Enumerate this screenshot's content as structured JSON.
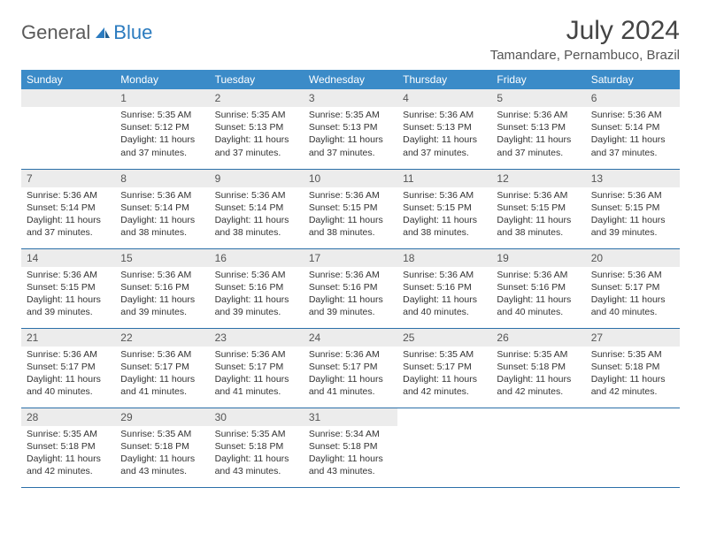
{
  "brand": {
    "part1": "General",
    "part2": "Blue"
  },
  "title": "July 2024",
  "location": "Tamandare, Pernambuco, Brazil",
  "colors": {
    "header_bg": "#3b8bc8",
    "header_text": "#ffffff",
    "daynum_bg": "#ececec",
    "rule": "#2b6fa8",
    "brand_blue": "#2b7bbf",
    "brand_gray": "#5a5a5a"
  },
  "weekdays": [
    "Sunday",
    "Monday",
    "Tuesday",
    "Wednesday",
    "Thursday",
    "Friday",
    "Saturday"
  ],
  "start_offset": 1,
  "days": [
    {
      "n": 1,
      "sunrise": "5:35 AM",
      "sunset": "5:12 PM",
      "daylight": "11 hours and 37 minutes."
    },
    {
      "n": 2,
      "sunrise": "5:35 AM",
      "sunset": "5:13 PM",
      "daylight": "11 hours and 37 minutes."
    },
    {
      "n": 3,
      "sunrise": "5:35 AM",
      "sunset": "5:13 PM",
      "daylight": "11 hours and 37 minutes."
    },
    {
      "n": 4,
      "sunrise": "5:36 AM",
      "sunset": "5:13 PM",
      "daylight": "11 hours and 37 minutes."
    },
    {
      "n": 5,
      "sunrise": "5:36 AM",
      "sunset": "5:13 PM",
      "daylight": "11 hours and 37 minutes."
    },
    {
      "n": 6,
      "sunrise": "5:36 AM",
      "sunset": "5:14 PM",
      "daylight": "11 hours and 37 minutes."
    },
    {
      "n": 7,
      "sunrise": "5:36 AM",
      "sunset": "5:14 PM",
      "daylight": "11 hours and 37 minutes."
    },
    {
      "n": 8,
      "sunrise": "5:36 AM",
      "sunset": "5:14 PM",
      "daylight": "11 hours and 38 minutes."
    },
    {
      "n": 9,
      "sunrise": "5:36 AM",
      "sunset": "5:14 PM",
      "daylight": "11 hours and 38 minutes."
    },
    {
      "n": 10,
      "sunrise": "5:36 AM",
      "sunset": "5:15 PM",
      "daylight": "11 hours and 38 minutes."
    },
    {
      "n": 11,
      "sunrise": "5:36 AM",
      "sunset": "5:15 PM",
      "daylight": "11 hours and 38 minutes."
    },
    {
      "n": 12,
      "sunrise": "5:36 AM",
      "sunset": "5:15 PM",
      "daylight": "11 hours and 38 minutes."
    },
    {
      "n": 13,
      "sunrise": "5:36 AM",
      "sunset": "5:15 PM",
      "daylight": "11 hours and 39 minutes."
    },
    {
      "n": 14,
      "sunrise": "5:36 AM",
      "sunset": "5:15 PM",
      "daylight": "11 hours and 39 minutes."
    },
    {
      "n": 15,
      "sunrise": "5:36 AM",
      "sunset": "5:16 PM",
      "daylight": "11 hours and 39 minutes."
    },
    {
      "n": 16,
      "sunrise": "5:36 AM",
      "sunset": "5:16 PM",
      "daylight": "11 hours and 39 minutes."
    },
    {
      "n": 17,
      "sunrise": "5:36 AM",
      "sunset": "5:16 PM",
      "daylight": "11 hours and 39 minutes."
    },
    {
      "n": 18,
      "sunrise": "5:36 AM",
      "sunset": "5:16 PM",
      "daylight": "11 hours and 40 minutes."
    },
    {
      "n": 19,
      "sunrise": "5:36 AM",
      "sunset": "5:16 PM",
      "daylight": "11 hours and 40 minutes."
    },
    {
      "n": 20,
      "sunrise": "5:36 AM",
      "sunset": "5:17 PM",
      "daylight": "11 hours and 40 minutes."
    },
    {
      "n": 21,
      "sunrise": "5:36 AM",
      "sunset": "5:17 PM",
      "daylight": "11 hours and 40 minutes."
    },
    {
      "n": 22,
      "sunrise": "5:36 AM",
      "sunset": "5:17 PM",
      "daylight": "11 hours and 41 minutes."
    },
    {
      "n": 23,
      "sunrise": "5:36 AM",
      "sunset": "5:17 PM",
      "daylight": "11 hours and 41 minutes."
    },
    {
      "n": 24,
      "sunrise": "5:36 AM",
      "sunset": "5:17 PM",
      "daylight": "11 hours and 41 minutes."
    },
    {
      "n": 25,
      "sunrise": "5:35 AM",
      "sunset": "5:17 PM",
      "daylight": "11 hours and 42 minutes."
    },
    {
      "n": 26,
      "sunrise": "5:35 AM",
      "sunset": "5:18 PM",
      "daylight": "11 hours and 42 minutes."
    },
    {
      "n": 27,
      "sunrise": "5:35 AM",
      "sunset": "5:18 PM",
      "daylight": "11 hours and 42 minutes."
    },
    {
      "n": 28,
      "sunrise": "5:35 AM",
      "sunset": "5:18 PM",
      "daylight": "11 hours and 42 minutes."
    },
    {
      "n": 29,
      "sunrise": "5:35 AM",
      "sunset": "5:18 PM",
      "daylight": "11 hours and 43 minutes."
    },
    {
      "n": 30,
      "sunrise": "5:35 AM",
      "sunset": "5:18 PM",
      "daylight": "11 hours and 43 minutes."
    },
    {
      "n": 31,
      "sunrise": "5:34 AM",
      "sunset": "5:18 PM",
      "daylight": "11 hours and 43 minutes."
    }
  ],
  "labels": {
    "sunrise": "Sunrise:",
    "sunset": "Sunset:",
    "daylight": "Daylight:"
  }
}
